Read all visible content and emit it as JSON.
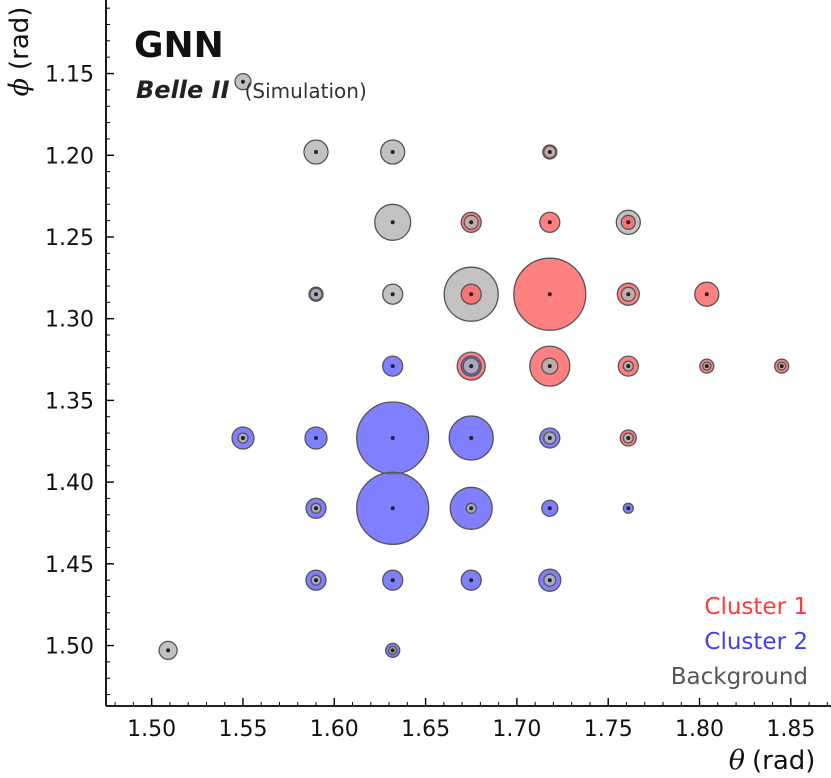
{
  "chart_data": {
    "type": "scatter",
    "experiment_label": "GNN",
    "experiment_name": "Belle II",
    "experiment_sub": "(Simulation)",
    "xlabel": {
      "symbol": "θ",
      "unit": "(rad)"
    },
    "ylabel": {
      "symbol": "ϕ",
      "unit": "(rad)"
    },
    "xlim": [
      1.475,
      1.872
    ],
    "ylim": [
      1.105,
      1.537
    ],
    "y_inverted": true,
    "xticks": [
      "1.50",
      "1.55",
      "1.60",
      "1.65",
      "1.70",
      "1.75",
      "1.80",
      "1.85"
    ],
    "yticks": [
      "1.15",
      "1.20",
      "1.25",
      "1.30",
      "1.35",
      "1.40",
      "1.45",
      "1.50"
    ],
    "legend_placement": "bottom-right",
    "grid": false,
    "colors": {
      "cluster1": "#ff6464",
      "cluster2": "#6464ff",
      "background": "#b4b4b4",
      "edge": "#555555"
    },
    "series": [
      {
        "name": "Cluster 1",
        "color": "#ff6464",
        "points": [
          {
            "x": 1.718,
            "y": 1.285,
            "r": 36
          },
          {
            "x": 1.718,
            "y": 1.329,
            "r": 20
          },
          {
            "x": 1.675,
            "y": 1.329,
            "r": 14
          },
          {
            "x": 1.761,
            "y": 1.285,
            "r": 11
          },
          {
            "x": 1.804,
            "y": 1.285,
            "r": 12
          },
          {
            "x": 1.761,
            "y": 1.329,
            "r": 10
          },
          {
            "x": 1.718,
            "y": 1.241,
            "r": 10
          },
          {
            "x": 1.675,
            "y": 1.241,
            "r": 10
          },
          {
            "x": 1.675,
            "y": 1.285,
            "r": 10
          },
          {
            "x": 1.761,
            "y": 1.373,
            "r": 8
          },
          {
            "x": 1.804,
            "y": 1.329,
            "r": 7
          },
          {
            "x": 1.718,
            "y": 1.198,
            "r": 7
          },
          {
            "x": 1.761,
            "y": 1.241,
            "r": 7
          },
          {
            "x": 1.845,
            "y": 1.329,
            "r": 7
          }
        ]
      },
      {
        "name": "Cluster 2",
        "color": "#6464ff",
        "points": [
          {
            "x": 1.632,
            "y": 1.373,
            "r": 36
          },
          {
            "x": 1.632,
            "y": 1.416,
            "r": 36
          },
          {
            "x": 1.675,
            "y": 1.373,
            "r": 22
          },
          {
            "x": 1.675,
            "y": 1.416,
            "r": 21
          },
          {
            "x": 1.59,
            "y": 1.373,
            "r": 11
          },
          {
            "x": 1.55,
            "y": 1.373,
            "r": 11
          },
          {
            "x": 1.59,
            "y": 1.416,
            "r": 10
          },
          {
            "x": 1.59,
            "y": 1.46,
            "r": 10
          },
          {
            "x": 1.632,
            "y": 1.46,
            "r": 10
          },
          {
            "x": 1.675,
            "y": 1.46,
            "r": 10
          },
          {
            "x": 1.718,
            "y": 1.46,
            "r": 11
          },
          {
            "x": 1.718,
            "y": 1.416,
            "r": 8
          },
          {
            "x": 1.718,
            "y": 1.373,
            "r": 10
          },
          {
            "x": 1.675,
            "y": 1.329,
            "r": 10
          },
          {
            "x": 1.632,
            "y": 1.329,
            "r": 10
          },
          {
            "x": 1.632,
            "y": 1.503,
            "r": 7
          },
          {
            "x": 1.59,
            "y": 1.285,
            "r": 7
          },
          {
            "x": 1.761,
            "y": 1.416,
            "r": 5
          }
        ]
      },
      {
        "name": "Background",
        "color": "#b4b4b4",
        "points": [
          {
            "x": 1.675,
            "y": 1.285,
            "r": 27
          },
          {
            "x": 1.632,
            "y": 1.241,
            "r": 18
          },
          {
            "x": 1.59,
            "y": 1.198,
            "r": 12
          },
          {
            "x": 1.632,
            "y": 1.198,
            "r": 12
          },
          {
            "x": 1.761,
            "y": 1.241,
            "r": 12
          },
          {
            "x": 1.632,
            "y": 1.285,
            "r": 10
          },
          {
            "x": 1.718,
            "y": 1.329,
            "r": 8
          },
          {
            "x": 1.55,
            "y": 1.155,
            "r": 8
          },
          {
            "x": 1.509,
            "y": 1.503,
            "r": 9
          },
          {
            "x": 1.675,
            "y": 1.241,
            "r": 7
          },
          {
            "x": 1.761,
            "y": 1.285,
            "r": 7
          },
          {
            "x": 1.718,
            "y": 1.198,
            "r": 6
          },
          {
            "x": 1.59,
            "y": 1.285,
            "r": 6
          },
          {
            "x": 1.59,
            "y": 1.416,
            "r": 5
          },
          {
            "x": 1.55,
            "y": 1.373,
            "r": 5
          },
          {
            "x": 1.59,
            "y": 1.46,
            "r": 5
          },
          {
            "x": 1.675,
            "y": 1.416,
            "r": 5
          },
          {
            "x": 1.761,
            "y": 1.329,
            "r": 5
          },
          {
            "x": 1.761,
            "y": 1.373,
            "r": 5
          },
          {
            "x": 1.718,
            "y": 1.373,
            "r": 6
          },
          {
            "x": 1.675,
            "y": 1.329,
            "r": 8
          },
          {
            "x": 1.632,
            "y": 1.503,
            "r": 4
          },
          {
            "x": 1.804,
            "y": 1.329,
            "r": 4
          },
          {
            "x": 1.845,
            "y": 1.329,
            "r": 4
          },
          {
            "x": 1.718,
            "y": 1.46,
            "r": 6
          }
        ]
      }
    ]
  }
}
